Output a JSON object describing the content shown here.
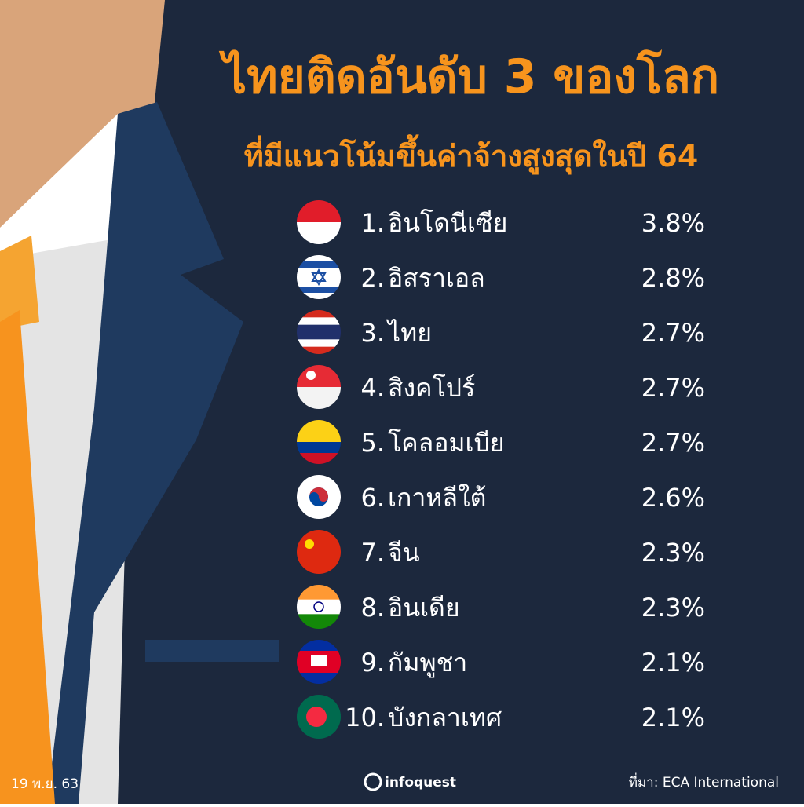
{
  "header": {
    "title": "ไทยติดอันดับ 3 ของโลก",
    "subtitle": "ที่มีแนวโน้มขึ้นค่าจ้างสูงสุดในปี 64"
  },
  "items": [
    {
      "rank": "1.",
      "name": "อินโดนีเซีย",
      "value": "3.8%"
    },
    {
      "rank": "2.",
      "name": "อิสราเอล",
      "value": "2.8%"
    },
    {
      "rank": "3.",
      "name": "ไทย",
      "value": "2.7%"
    },
    {
      "rank": "4.",
      "name": "สิงคโปร์",
      "value": "2.7%"
    },
    {
      "rank": "5.",
      "name": "โคลอมเบีย",
      "value": "2.7%"
    },
    {
      "rank": "6.",
      "name": "เกาหลีใต้",
      "value": "2.6%"
    },
    {
      "rank": "7.",
      "name": "จีน",
      "value": "2.3%"
    },
    {
      "rank": "8.",
      "name": "อินเดีย",
      "value": "2.3%"
    },
    {
      "rank": "9.",
      "name": "กัมพูชา",
      "value": "2.1%"
    },
    {
      "rank": "10.",
      "name": "บังกลาเทศ",
      "value": "2.1%"
    }
  ],
  "footer": {
    "date": "19 พ.ย. 63",
    "brand": "infoquest",
    "source": "ที่มา: ECA International"
  }
}
